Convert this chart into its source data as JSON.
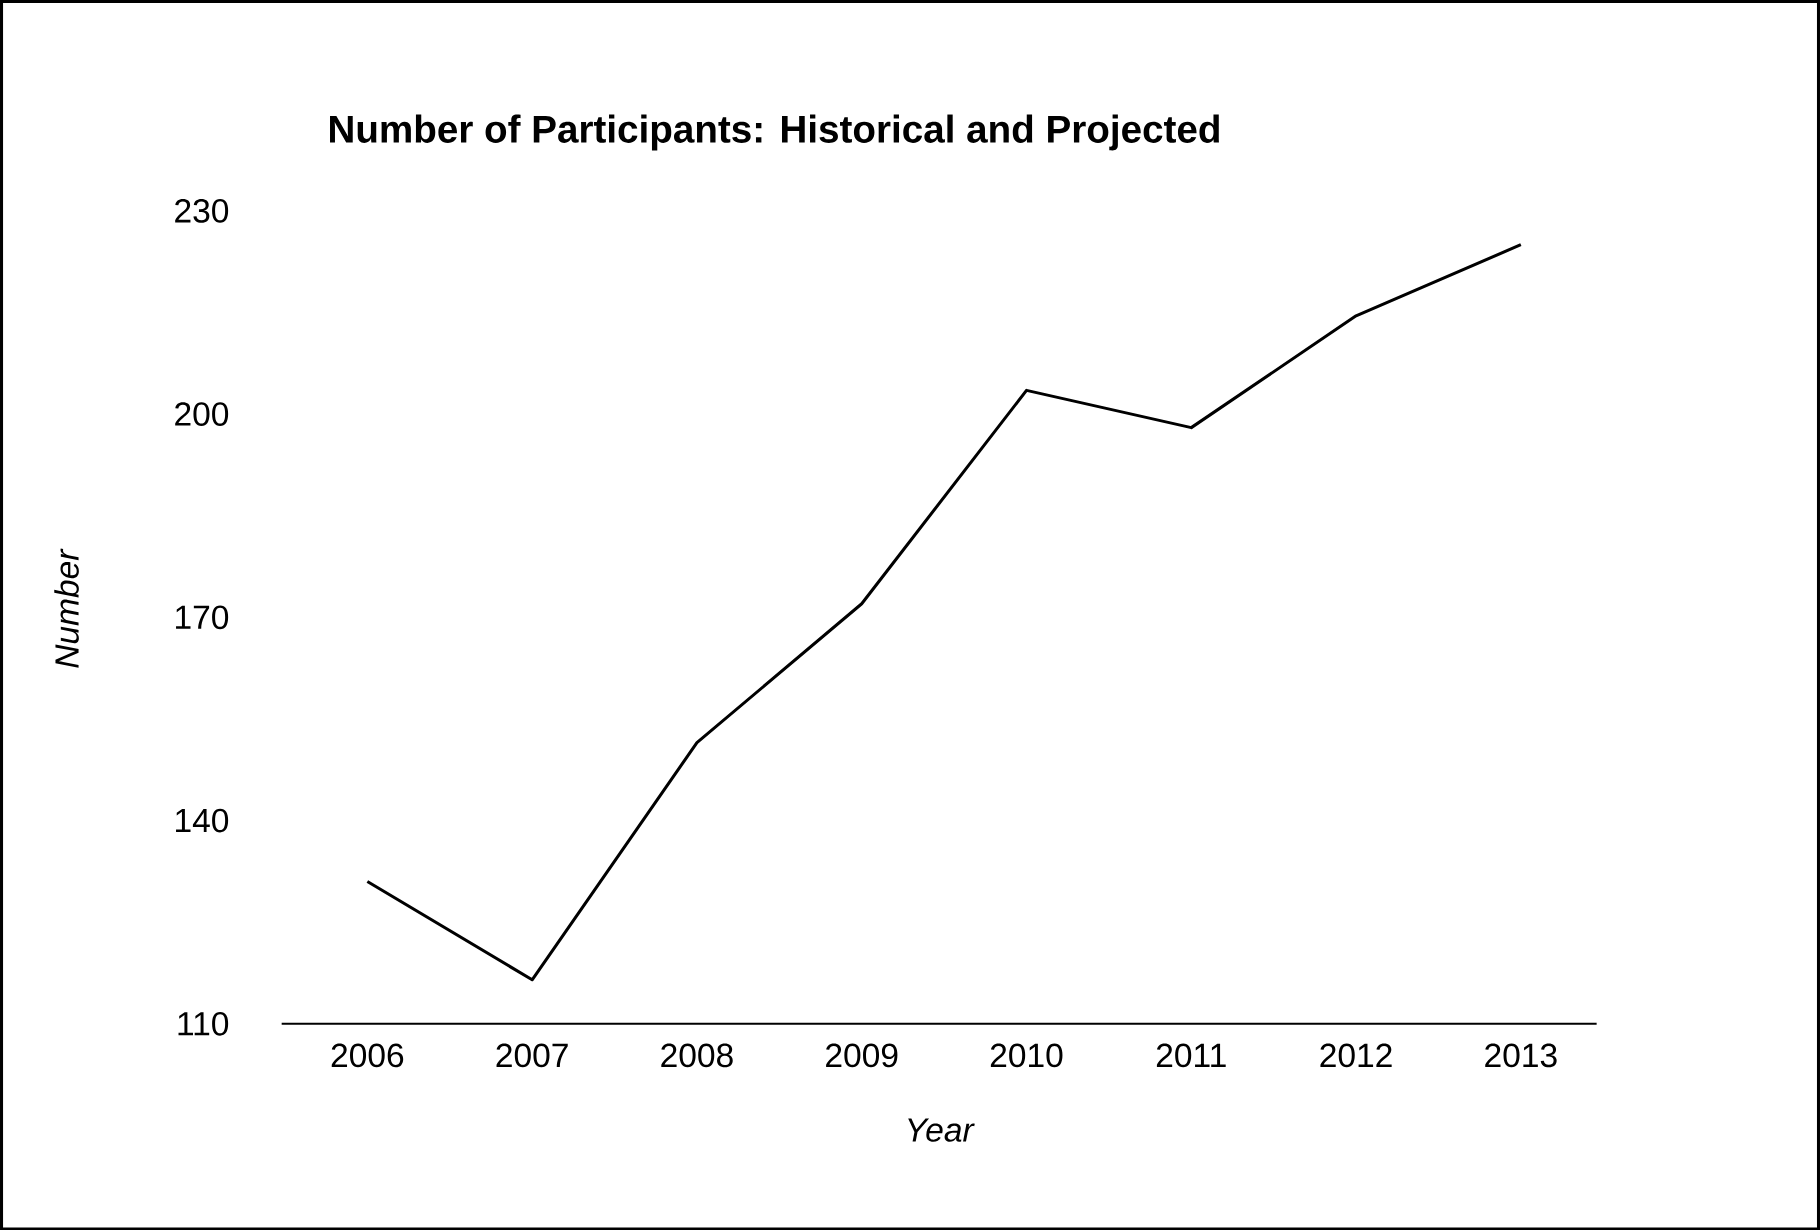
{
  "chart_data": {
    "type": "line",
    "title": "Number of Participants: Historical and Projected",
    "xlabel": "Year",
    "ylabel": "Number",
    "categories": [
      "2006",
      "2007",
      "2008",
      "2009",
      "2010",
      "2011",
      "2012",
      "2013"
    ],
    "series": [
      {
        "color": "#000000",
        "values": [
          131,
          116.5,
          151.5,
          172,
          203.5,
          198,
          214.5,
          225
        ]
      }
    ],
    "ylim": [
      110,
      230
    ],
    "yticks": [
      110,
      140,
      170,
      200,
      230
    ],
    "grid": false,
    "marker": "none",
    "line_style": "solid"
  }
}
